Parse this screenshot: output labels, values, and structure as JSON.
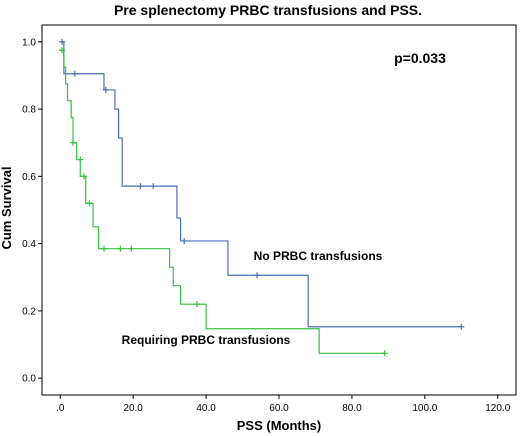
{
  "chart_data": {
    "type": "line",
    "title": "Pre splenectomy PRBC transfusions and PSS.",
    "xlabel": "PSS (Months)",
    "ylabel": "Cum Survival",
    "xlim": [
      -5,
      125
    ],
    "ylim": [
      -0.05,
      1.05
    ],
    "xticks": [
      0,
      20,
      40,
      60,
      80,
      100,
      120
    ],
    "xtick_labels": [
      ".0",
      "20.0",
      "40.0",
      "60.0",
      "80.0",
      "100.0",
      "120.0"
    ],
    "yticks": [
      0,
      0.2,
      0.4,
      0.6,
      0.8,
      1.0
    ],
    "ytick_labels": [
      "0.0",
      "0.2",
      "0.4",
      "0.6",
      "0.8",
      "1.0"
    ],
    "grid": false,
    "annotation": "p=0.033",
    "series": [
      {
        "name": "No PRBC transfusions",
        "color": "#4a6fb5",
        "steps": [
          [
            0,
            1.0
          ],
          [
            1,
            0.905
          ],
          [
            12,
            0.857
          ],
          [
            15,
            0.8
          ],
          [
            16,
            0.714
          ],
          [
            17,
            0.571
          ],
          [
            32,
            0.476
          ],
          [
            33,
            0.408
          ],
          [
            46,
            0.306
          ],
          [
            68,
            0.153
          ],
          [
            110,
            0.153
          ]
        ],
        "censored": [
          [
            0.5,
            1.0
          ],
          [
            4,
            0.905
          ],
          [
            12.5,
            0.857
          ],
          [
            22,
            0.571
          ],
          [
            25.5,
            0.571
          ],
          [
            34,
            0.408
          ],
          [
            54,
            0.306
          ],
          [
            110,
            0.153
          ]
        ]
      },
      {
        "name": "Requiring PRBC transfusions",
        "color": "#35c141",
        "steps": [
          [
            0,
            0.975
          ],
          [
            1,
            0.925
          ],
          [
            1.5,
            0.875
          ],
          [
            2,
            0.825
          ],
          [
            3,
            0.775
          ],
          [
            3.5,
            0.7
          ],
          [
            4.5,
            0.65
          ],
          [
            5.5,
            0.6
          ],
          [
            7,
            0.52
          ],
          [
            9,
            0.45
          ],
          [
            10.5,
            0.385
          ],
          [
            30,
            0.33
          ],
          [
            31,
            0.275
          ],
          [
            33,
            0.22
          ],
          [
            40,
            0.147
          ],
          [
            71,
            0.074
          ],
          [
            89,
            0.074
          ]
        ],
        "censored": [
          [
            0.5,
            0.975
          ],
          [
            3.5,
            0.7
          ],
          [
            5.5,
            0.65
          ],
          [
            6.5,
            0.6
          ],
          [
            8,
            0.52
          ],
          [
            12,
            0.385
          ],
          [
            16.5,
            0.385
          ],
          [
            19.5,
            0.385
          ],
          [
            37.5,
            0.22
          ],
          [
            89,
            0.074
          ]
        ]
      }
    ]
  }
}
